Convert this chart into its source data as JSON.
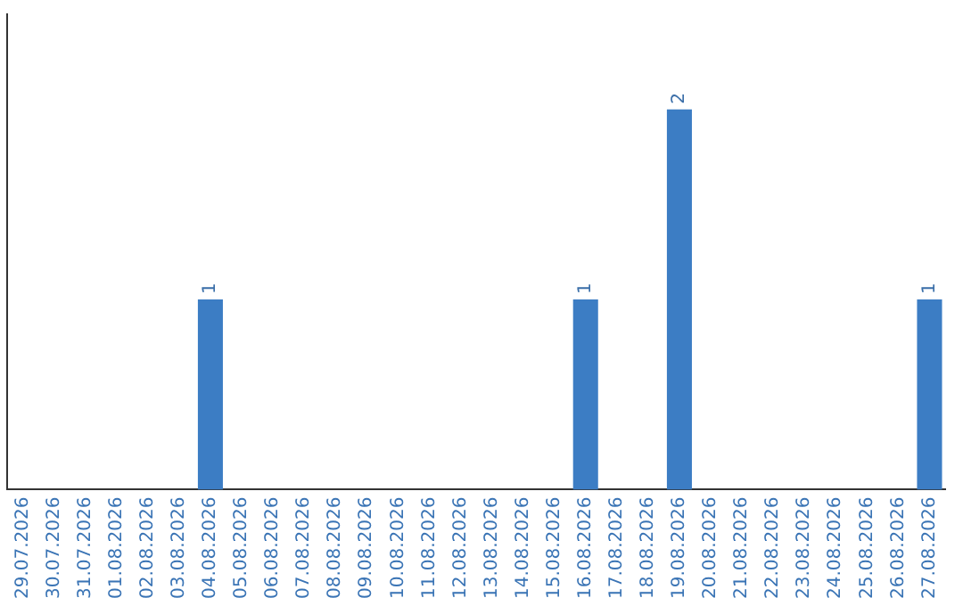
{
  "chart_data": {
    "type": "bar",
    "categories": [
      "29.07.2026",
      "30.07.2026",
      "31.07.2026",
      "01.08.2026",
      "02.08.2026",
      "03.08.2026",
      "04.08.2026",
      "05.08.2026",
      "06.08.2026",
      "07.08.2026",
      "08.08.2026",
      "09.08.2026",
      "10.08.2026",
      "11.08.2026",
      "12.08.2026",
      "13.08.2026",
      "14.08.2026",
      "15.08.2026",
      "16.08.2026",
      "17.08.2026",
      "18.08.2026",
      "19.08.2026",
      "20.08.2026",
      "21.08.2026",
      "22.08.2026",
      "23.08.2026",
      "24.08.2026",
      "25.08.2026",
      "26.08.2026",
      "27.08.2026"
    ],
    "values": [
      0,
      0,
      0,
      0,
      0,
      0,
      1,
      0,
      0,
      0,
      0,
      0,
      0,
      0,
      0,
      0,
      0,
      0,
      1,
      0,
      0,
      2,
      0,
      0,
      0,
      0,
      0,
      0,
      0,
      1
    ],
    "value_labels": [
      null,
      null,
      null,
      null,
      null,
      null,
      "1",
      null,
      null,
      null,
      null,
      null,
      null,
      null,
      null,
      null,
      null,
      null,
      "1",
      null,
      null,
      "2",
      null,
      null,
      null,
      null,
      null,
      null,
      null,
      "1"
    ],
    "color": "#3c7dc4",
    "grid": false,
    "legend": false,
    "tick_labels": "x"
  }
}
